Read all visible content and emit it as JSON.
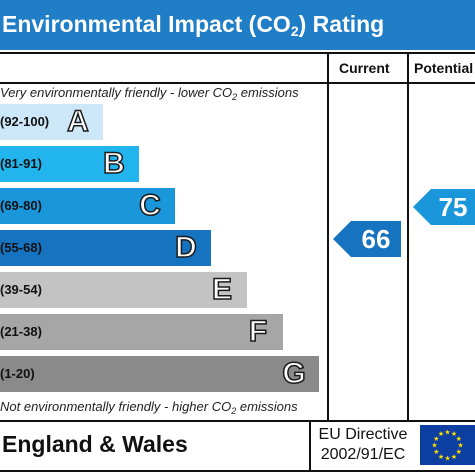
{
  "header": {
    "title_prefix": "Environmental Impact (CO",
    "title_sub": "2",
    "title_suffix": ") Rating"
  },
  "columns": {
    "current": "Current",
    "potential": "Potential"
  },
  "notes": {
    "top_prefix": "Very environmentally friendly - lower CO",
    "top_sub": "2",
    "top_suffix": " emissions",
    "bottom_prefix": "Not environmentally friendly - higher CO",
    "bottom_sub": "2",
    "bottom_suffix": " emissions"
  },
  "bands": [
    {
      "range": "(92-100)",
      "letter": "A",
      "color": "#cce8f8"
    },
    {
      "range": "(81-91)",
      "letter": "B",
      "color": "#22b4ec"
    },
    {
      "range": "(69-80)",
      "letter": "C",
      "color": "#1a96da"
    },
    {
      "range": "(55-68)",
      "letter": "D",
      "color": "#1573bf"
    },
    {
      "range": "(39-54)",
      "letter": "E",
      "color": "#c3c3c3"
    },
    {
      "range": "(21-38)",
      "letter": "F",
      "color": "#a6a6a6"
    },
    {
      "range": "(1-20)",
      "letter": "G",
      "color": "#8a8a8a"
    }
  ],
  "ratings": {
    "current": {
      "value": "66",
      "band": "D",
      "color": "#1573bf"
    },
    "potential": {
      "value": "75",
      "band": "C",
      "color": "#1a96da"
    }
  },
  "footer": {
    "region": "England & Wales",
    "directive_line1": "EU Directive",
    "directive_line2": "2002/91/EC",
    "flag_icon": "eu-flag-icon"
  },
  "colors": {
    "header_bg": "#1f7ec6",
    "flag_blue": "#0d3fa2",
    "flag_star": "#ffdd00"
  }
}
